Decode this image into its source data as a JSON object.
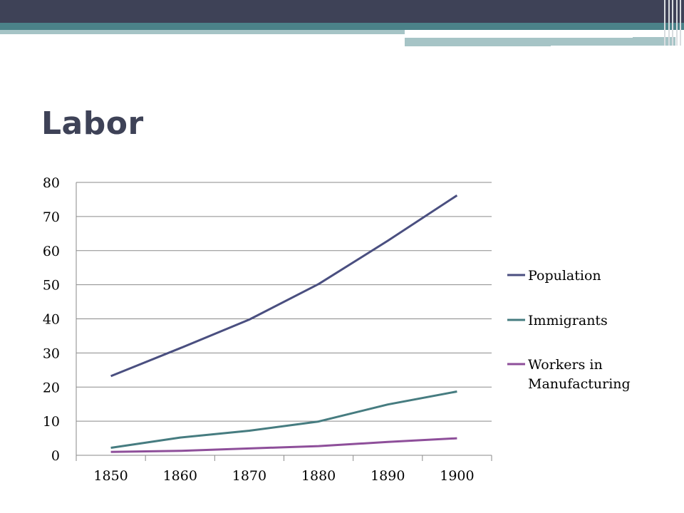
{
  "slide": {
    "title": "Labor",
    "colors": {
      "dark": "#3e4257",
      "teal": "#4b8289",
      "light": "#a6c4c6"
    }
  },
  "chart_data": {
    "type": "line",
    "x": [
      "1850",
      "1860",
      "1870",
      "1880",
      "1890",
      "1900"
    ],
    "ylim": [
      0,
      80
    ],
    "yticks": [
      0,
      10,
      20,
      30,
      40,
      50,
      60,
      70,
      80
    ],
    "grid": true,
    "legend_position": "right",
    "series": [
      {
        "name": "Population",
        "color": "#4a4f80",
        "values": [
          23.2,
          31.4,
          39.8,
          50.2,
          62.9,
          76.2
        ]
      },
      {
        "name": "Immigrants",
        "color": "#467c80",
        "values": [
          2.2,
          5.2,
          7.2,
          9.9,
          14.9,
          18.7
        ]
      },
      {
        "name": "Workers in Manufacturing",
        "color": "#8e4f9a",
        "values": [
          1.0,
          1.3,
          2.0,
          2.7,
          3.9,
          5.0
        ]
      }
    ]
  }
}
